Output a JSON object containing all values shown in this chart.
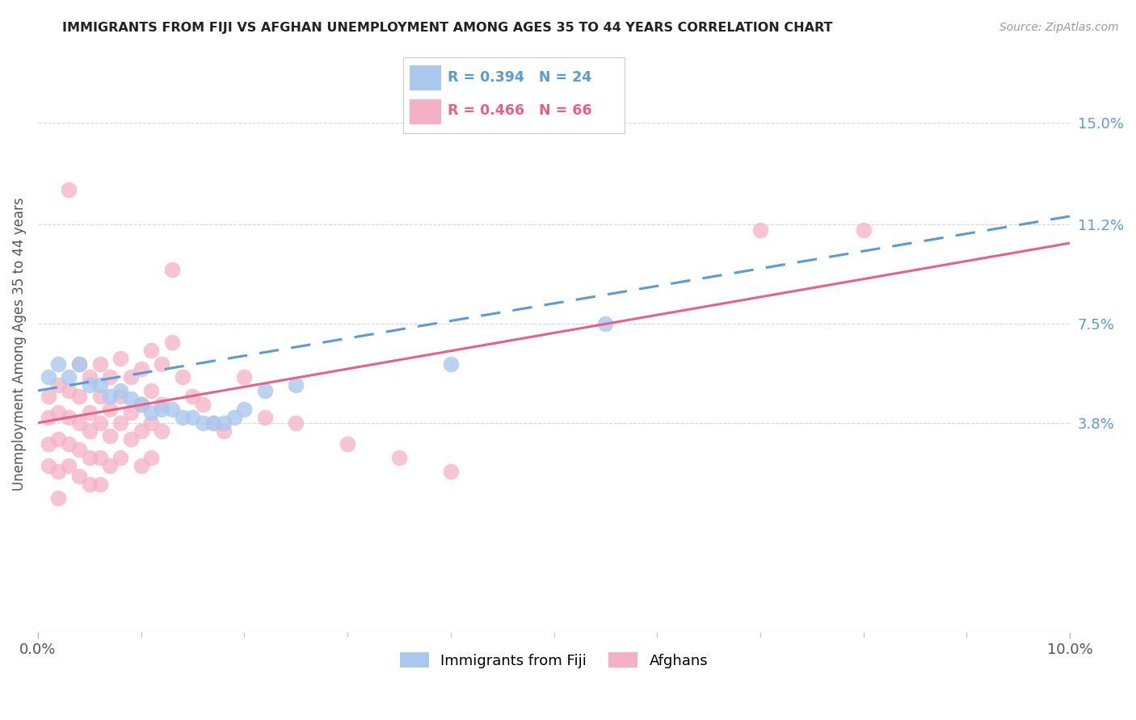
{
  "title": "IMMIGRANTS FROM FIJI VS AFGHAN UNEMPLOYMENT AMONG AGES 35 TO 44 YEARS CORRELATION CHART",
  "source": "Source: ZipAtlas.com",
  "ylabel": "Unemployment Among Ages 35 to 44 years",
  "xlim": [
    0.0,
    0.1
  ],
  "ylim": [
    -0.04,
    0.175
  ],
  "x_ticks": [
    0.0,
    0.1
  ],
  "x_tick_labels": [
    "0.0%",
    "10.0%"
  ],
  "y_tick_labels_right": [
    "3.8%",
    "7.5%",
    "11.2%",
    "15.0%"
  ],
  "y_tick_values_right": [
    0.038,
    0.075,
    0.112,
    0.15
  ],
  "fiji_R": 0.394,
  "fiji_N": 24,
  "afghan_R": 0.466,
  "afghan_N": 66,
  "fiji_color": "#aac8ee",
  "afghan_color": "#f5b0c5",
  "fiji_line_color": "#5b9bd5",
  "afghan_line_color": "#e8608a",
  "legend_label_fiji": "Immigrants from Fiji",
  "legend_label_afghan": "Afghans",
  "fiji_scatter": [
    [
      0.001,
      0.055
    ],
    [
      0.002,
      0.06
    ],
    [
      0.003,
      0.055
    ],
    [
      0.004,
      0.06
    ],
    [
      0.005,
      0.052
    ],
    [
      0.006,
      0.052
    ],
    [
      0.007,
      0.048
    ],
    [
      0.008,
      0.05
    ],
    [
      0.009,
      0.047
    ],
    [
      0.01,
      0.045
    ],
    [
      0.011,
      0.042
    ],
    [
      0.012,
      0.043
    ],
    [
      0.013,
      0.043
    ],
    [
      0.014,
      0.04
    ],
    [
      0.015,
      0.04
    ],
    [
      0.016,
      0.038
    ],
    [
      0.017,
      0.038
    ],
    [
      0.018,
      0.038
    ],
    [
      0.019,
      0.04
    ],
    [
      0.02,
      0.043
    ],
    [
      0.022,
      0.05
    ],
    [
      0.025,
      0.052
    ],
    [
      0.04,
      0.06
    ],
    [
      0.055,
      0.075
    ]
  ],
  "afghan_scatter": [
    [
      0.001,
      0.048
    ],
    [
      0.001,
      0.04
    ],
    [
      0.001,
      0.03
    ],
    [
      0.001,
      0.022
    ],
    [
      0.002,
      0.052
    ],
    [
      0.002,
      0.042
    ],
    [
      0.002,
      0.032
    ],
    [
      0.002,
      0.02
    ],
    [
      0.002,
      0.01
    ],
    [
      0.003,
      0.125
    ],
    [
      0.003,
      0.05
    ],
    [
      0.003,
      0.04
    ],
    [
      0.003,
      0.03
    ],
    [
      0.003,
      0.022
    ],
    [
      0.004,
      0.06
    ],
    [
      0.004,
      0.048
    ],
    [
      0.004,
      0.038
    ],
    [
      0.004,
      0.028
    ],
    [
      0.004,
      0.018
    ],
    [
      0.005,
      0.055
    ],
    [
      0.005,
      0.042
    ],
    [
      0.005,
      0.035
    ],
    [
      0.005,
      0.025
    ],
    [
      0.005,
      0.015
    ],
    [
      0.006,
      0.06
    ],
    [
      0.006,
      0.048
    ],
    [
      0.006,
      0.038
    ],
    [
      0.006,
      0.025
    ],
    [
      0.006,
      0.015
    ],
    [
      0.007,
      0.055
    ],
    [
      0.007,
      0.043
    ],
    [
      0.007,
      0.033
    ],
    [
      0.007,
      0.022
    ],
    [
      0.008,
      0.062
    ],
    [
      0.008,
      0.048
    ],
    [
      0.008,
      0.038
    ],
    [
      0.008,
      0.025
    ],
    [
      0.009,
      0.055
    ],
    [
      0.009,
      0.042
    ],
    [
      0.009,
      0.032
    ],
    [
      0.01,
      0.058
    ],
    [
      0.01,
      0.045
    ],
    [
      0.01,
      0.035
    ],
    [
      0.01,
      0.022
    ],
    [
      0.011,
      0.065
    ],
    [
      0.011,
      0.05
    ],
    [
      0.011,
      0.038
    ],
    [
      0.011,
      0.025
    ],
    [
      0.012,
      0.06
    ],
    [
      0.012,
      0.045
    ],
    [
      0.012,
      0.035
    ],
    [
      0.013,
      0.068
    ],
    [
      0.013,
      0.095
    ],
    [
      0.014,
      0.055
    ],
    [
      0.015,
      0.048
    ],
    [
      0.016,
      0.045
    ],
    [
      0.017,
      0.038
    ],
    [
      0.018,
      0.035
    ],
    [
      0.02,
      0.055
    ],
    [
      0.022,
      0.04
    ],
    [
      0.025,
      0.038
    ],
    [
      0.03,
      0.03
    ],
    [
      0.035,
      0.025
    ],
    [
      0.04,
      0.02
    ],
    [
      0.07,
      0.11
    ],
    [
      0.08,
      0.11
    ]
  ],
  "fiji_line_x": [
    0.0,
    0.1
  ],
  "fiji_line_y": [
    0.05,
    0.115
  ],
  "afghan_line_x": [
    0.0,
    0.1
  ],
  "afghan_line_y": [
    0.038,
    0.105
  ],
  "background_color": "#ffffff",
  "grid_color": "#cccccc"
}
